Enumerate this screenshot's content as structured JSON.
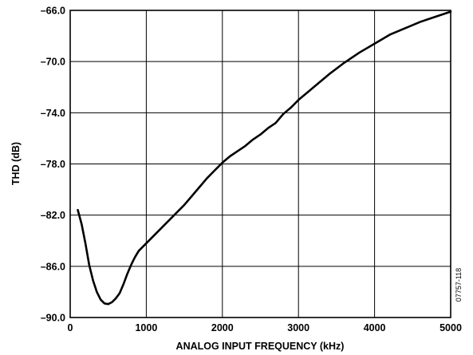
{
  "chart_data": {
    "type": "line",
    "title": "",
    "xlabel": "ANALOG INPUT FREQUENCY (kHz)",
    "ylabel": "THD (dB)",
    "xlim": [
      0,
      5000
    ],
    "ylim": [
      -90.0,
      -66.0
    ],
    "x_ticks": [
      0,
      1000,
      2000,
      3000,
      4000,
      5000
    ],
    "x_tick_labels": [
      "0",
      "1000",
      "2000",
      "3000",
      "4000",
      "5000"
    ],
    "y_ticks": [
      -90.0,
      -86.0,
      -82.0,
      -78.0,
      -74.0,
      -70.0,
      -66.0
    ],
    "y_tick_labels": [
      "–90.0",
      "–86.0",
      "–82.0",
      "–78.0",
      "–74.0",
      "–70.0",
      "–66.0"
    ],
    "grid": true,
    "line_color": "#000000",
    "figure_id": "07757-118",
    "series": [
      {
        "x": [
          100,
          150,
          200,
          250,
          300,
          350,
          400,
          450,
          500,
          550,
          600,
          650,
          700,
          750,
          800,
          850,
          900,
          1000,
          1100,
          1200,
          1300,
          1400,
          1500,
          1600,
          1700,
          1800,
          1900,
          2000,
          2100,
          2200,
          2300,
          2400,
          2500,
          2600,
          2700,
          2800,
          2900,
          3000,
          3200,
          3400,
          3600,
          3800,
          4000,
          4200,
          4400,
          4600,
          4800,
          5000
        ],
        "values": [
          -81.6,
          -82.7,
          -84.2,
          -85.9,
          -87.1,
          -88.0,
          -88.6,
          -88.9,
          -88.95,
          -88.8,
          -88.5,
          -88.1,
          -87.4,
          -86.6,
          -85.9,
          -85.3,
          -84.8,
          -84.2,
          -83.6,
          -83.0,
          -82.4,
          -81.8,
          -81.2,
          -80.5,
          -79.8,
          -79.1,
          -78.5,
          -77.9,
          -77.4,
          -77.0,
          -76.6,
          -76.1,
          -75.7,
          -75.2,
          -74.8,
          -74.1,
          -73.6,
          -73.0,
          -72.0,
          -71.0,
          -70.1,
          -69.3,
          -68.6,
          -67.9,
          -67.4,
          -66.9,
          -66.5,
          -66.1
        ]
      }
    ]
  }
}
